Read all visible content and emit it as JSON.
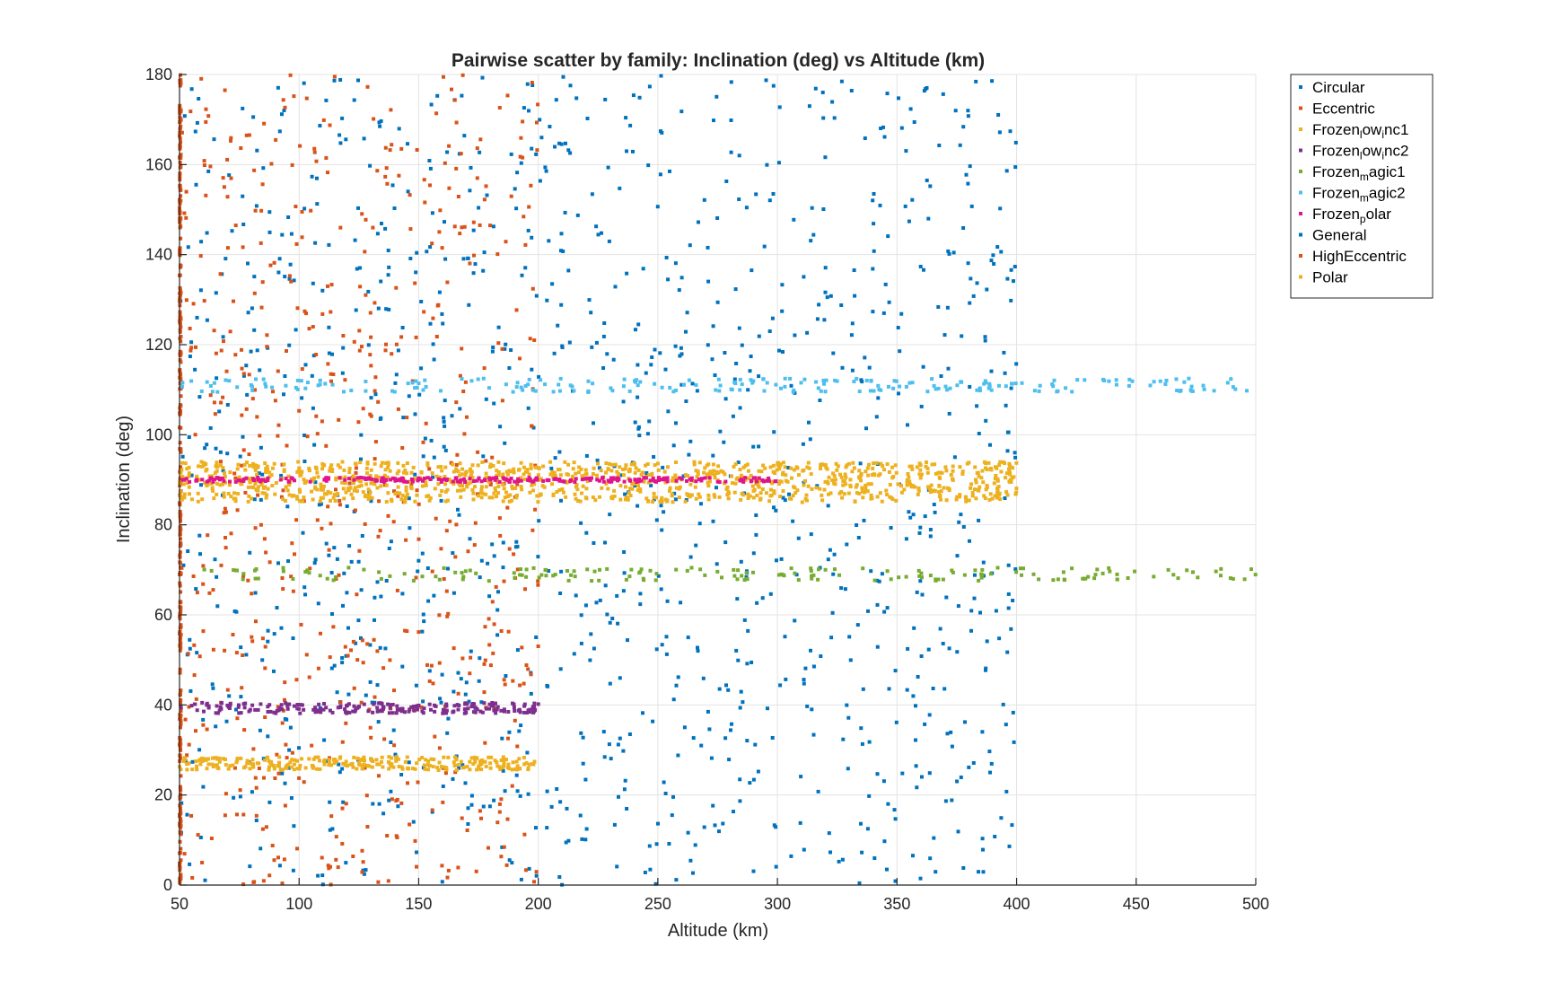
{
  "chart_data": {
    "type": "scatter",
    "title": "Pairwise scatter by family: Inclination (deg) vs Altitude (km)",
    "xlabel": "Altitude (km)",
    "ylabel": "Inclination (deg)",
    "xlim": [
      50,
      500
    ],
    "ylim": [
      0,
      180
    ],
    "xticks": [
      50,
      100,
      150,
      200,
      250,
      300,
      350,
      400,
      450,
      500
    ],
    "yticks": [
      0,
      20,
      40,
      60,
      80,
      100,
      120,
      140,
      160,
      180
    ],
    "grid": true,
    "legend_position": "outside-top-right",
    "series": [
      {
        "name": "Circular",
        "label_parts": [
          [
            "Circular",
            ""
          ]
        ],
        "color": "#0072BD",
        "distribution": "uniform",
        "altitude_range": [
          50,
          400
        ],
        "inclination_range": [
          0,
          180
        ],
        "approx_count": 700
      },
      {
        "name": "Eccentric",
        "label_parts": [
          [
            "Eccentric",
            ""
          ]
        ],
        "color": "#D95319",
        "distribution": "uniform",
        "altitude_range": [
          50,
          200
        ],
        "inclination_range": [
          0,
          180
        ],
        "approx_count": 600
      },
      {
        "name": "Frozen_low_inc1",
        "label_parts": [
          [
            "Frozen",
            ""
          ],
          [
            "l",
            "sub"
          ],
          [
            "ow",
            ""
          ],
          [
            "i",
            "sub"
          ],
          [
            "nc1",
            ""
          ]
        ],
        "color": "#EDB120",
        "distribution": "band",
        "altitude_range": [
          50,
          200
        ],
        "inclination_center": 27,
        "inclination_spread": 1.5,
        "approx_count": 260
      },
      {
        "name": "Frozen_low_inc2",
        "label_parts": [
          [
            "Frozen",
            ""
          ],
          [
            "l",
            "sub"
          ],
          [
            "ow",
            ""
          ],
          [
            "i",
            "sub"
          ],
          [
            "nc2",
            ""
          ]
        ],
        "color": "#7E2F8E",
        "distribution": "band",
        "altitude_range": [
          50,
          200
        ],
        "inclination_center": 39.3,
        "inclination_spread": 1.2,
        "approx_count": 220
      },
      {
        "name": "Frozen_magic1",
        "label_parts": [
          [
            "Frozen",
            ""
          ],
          [
            "m",
            "sub"
          ],
          [
            "agic1",
            ""
          ]
        ],
        "color": "#77AC30",
        "distribution": "band",
        "altitude_range": [
          50,
          500
        ],
        "inclination_center": 69,
        "inclination_spread": 1.5,
        "approx_count": 180
      },
      {
        "name": "Frozen_magic2",
        "label_parts": [
          [
            "Frozen",
            ""
          ],
          [
            "m",
            "sub"
          ],
          [
            "agic2",
            ""
          ]
        ],
        "color": "#4DBEEE",
        "distribution": "band",
        "altitude_range": [
          50,
          500
        ],
        "inclination_center": 111,
        "inclination_spread": 1.5,
        "approx_count": 220
      },
      {
        "name": "Frozen_polar",
        "label_parts": [
          [
            "Frozen",
            ""
          ],
          [
            "p",
            "sub"
          ],
          [
            "olar",
            ""
          ]
        ],
        "color": "#E0148C",
        "distribution": "band",
        "altitude_range": [
          50,
          300
        ],
        "inclination_center": 90,
        "inclination_spread": 0.5,
        "approx_count": 260
      },
      {
        "name": "General",
        "label_parts": [
          [
            "General",
            ""
          ]
        ],
        "color": "#0072BD",
        "distribution": "uniform",
        "altitude_range": [
          50,
          400
        ],
        "inclination_range": [
          0,
          180
        ],
        "approx_count": 500
      },
      {
        "name": "HighEccentric",
        "label_parts": [
          [
            "HighEccentric",
            ""
          ]
        ],
        "color": "#D95319",
        "distribution": "vertical",
        "altitude_value": 50,
        "inclination_range": [
          0,
          180
        ],
        "approx_count": 300
      },
      {
        "name": "Polar",
        "label_parts": [
          [
            "Polar",
            ""
          ]
        ],
        "color": "#EDB120",
        "distribution": "band",
        "altitude_range": [
          50,
          400
        ],
        "inclination_center": 89.5,
        "inclination_spread": 4.5,
        "approx_count": 1100
      }
    ]
  }
}
